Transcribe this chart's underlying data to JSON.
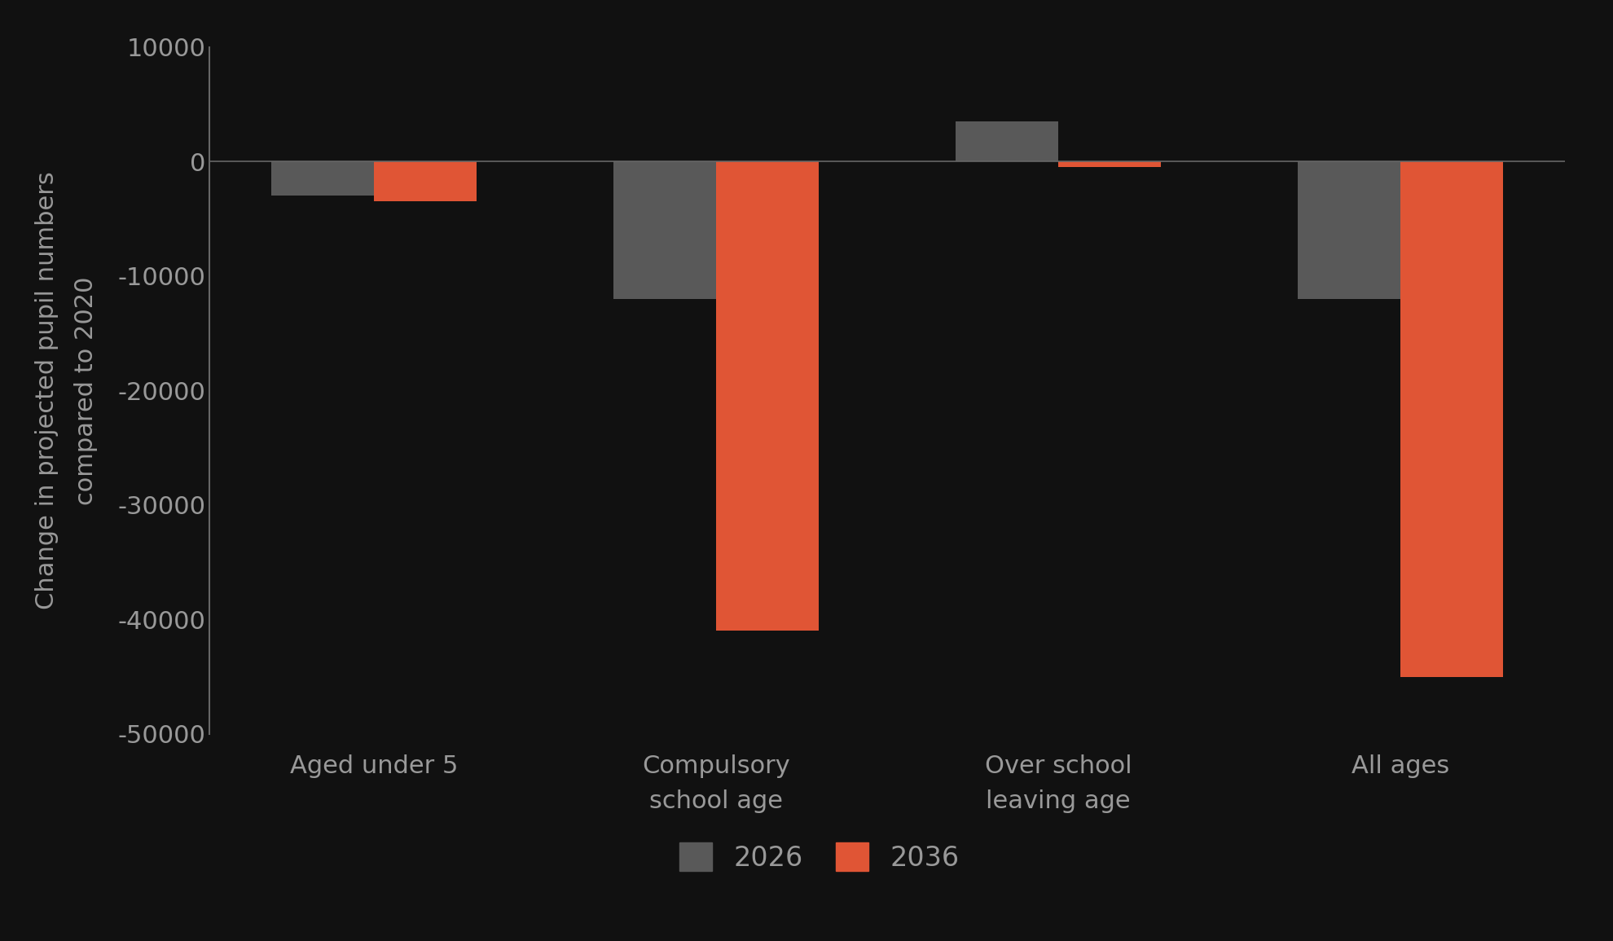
{
  "categories": [
    "Aged under 5",
    "Compulsory\nschool age",
    "Over school\nleaving age",
    "All ages"
  ],
  "series_2026": [
    -3000,
    -12000,
    3500,
    -12000
  ],
  "series_2036": [
    -3500,
    -41000,
    -500,
    -45000
  ],
  "color_2026": "#595959",
  "color_2036": "#e05535",
  "background_color": "#111111",
  "text_color": "#999999",
  "spine_color": "#666666",
  "ylabel_line1": "Change in projected pupil numbers",
  "ylabel_line2": "compared to 2020",
  "ylim": [
    -50000,
    10000
  ],
  "yticks": [
    -50000,
    -40000,
    -30000,
    -20000,
    -10000,
    0,
    10000
  ],
  "legend_2026": "2026",
  "legend_2036": "2036",
  "bar_width": 0.3
}
